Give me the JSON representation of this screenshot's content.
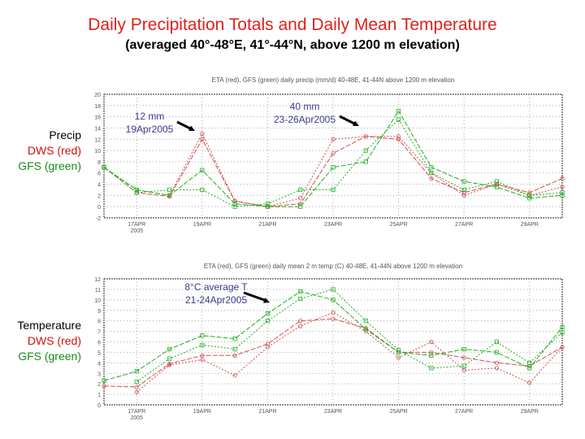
{
  "title": "Daily Precipitation Totals and Daily Mean Temperature",
  "subtitle": "(averaged 40°-48°E, 41°-44°N, above 1200 m elevation)",
  "panels": {
    "precip": {
      "label1": "Precip",
      "label2": "DWS (red)",
      "label3": "GFS (green)",
      "annot1": {
        "line1": "12 mm",
        "line2": "19Apr2005"
      },
      "annot2": {
        "line1": "40 mm",
        "line2": "23-26Apr2005"
      }
    },
    "temp": {
      "label1": "Temperature",
      "label2": "DWS (red)",
      "label3": "GFS (green)",
      "annot1": {
        "line1": "8°C average T",
        "line2": "21-24Apr2005"
      }
    }
  },
  "colors": {
    "red": "#d05050",
    "green": "#20b020",
    "title": "#e0201c",
    "annotation": "#3a3a8c"
  },
  "chart_data": [
    {
      "type": "line",
      "title": "ETA (red), GFS (green) daily precip (mm/d) 40-48E, 41-44N above 1200 m elevation",
      "x": [
        "16APR",
        "17APR",
        "18APR",
        "19APR",
        "20APR",
        "21APR",
        "22APR",
        "23APR",
        "24APR",
        "25APR",
        "26APR",
        "27APR",
        "28APR",
        "29APR",
        "30APR"
      ],
      "tick_labels": [
        "17APR\n2005",
        "19APR",
        "21APR",
        "23APR",
        "25APR",
        "27APR",
        "29APR"
      ],
      "ylim": [
        -2,
        20
      ],
      "yticks": [
        -2,
        0,
        2,
        4,
        6,
        8,
        10,
        12,
        14,
        16,
        18,
        20
      ],
      "grid": true,
      "series": [
        {
          "color": "red",
          "values": [
            7,
            2.5,
            1.8,
            12,
            1,
            0,
            0.5,
            9.5,
            12.5,
            12,
            5,
            2.5,
            4,
            2.5,
            5
          ]
        },
        {
          "color": "red",
          "values": [
            7,
            3,
            2,
            13,
            1,
            0,
            1.5,
            12,
            12.5,
            12.5,
            6,
            2,
            4,
            2,
            3.5
          ]
        },
        {
          "color": "green",
          "values": [
            7,
            3,
            2,
            6.5,
            0.5,
            0,
            0,
            7,
            8,
            17,
            7,
            4.5,
            3.5,
            1.5,
            2
          ]
        },
        {
          "color": "green",
          "values": [
            7,
            2.5,
            3,
            3,
            0,
            0.5,
            3,
            3,
            10,
            15.5,
            6,
            3,
            4.5,
            2,
            2.5
          ]
        }
      ]
    },
    {
      "type": "line",
      "title": "ETA (red), GFS (green) daily mean 2 m temp (C) 40-48E, 41-44N above 1200 m elevation",
      "x": [
        "16APR",
        "17APR",
        "18APR",
        "19APR",
        "20APR",
        "21APR",
        "22APR",
        "23APR",
        "24APR",
        "25APR",
        "26APR",
        "27APR",
        "28APR",
        "29APR",
        "30APR"
      ],
      "tick_labels": [
        "17APR\n2005",
        "19APR",
        "21APR",
        "23APR",
        "25APR",
        "27APR",
        "29APR"
      ],
      "ylim": [
        0,
        12
      ],
      "yticks": [
        0,
        1,
        2,
        3,
        4,
        5,
        6,
        7,
        8,
        9,
        10,
        11,
        12
      ],
      "grid": true,
      "series": [
        {
          "color": "red",
          "values": [
            1.8,
            1.7,
            3.9,
            4.7,
            4.7,
            5.8,
            8,
            8.2,
            7.3,
            5,
            5,
            4.5,
            4,
            3.7,
            5.5
          ]
        },
        {
          "color": "red",
          "values": [
            null,
            1.2,
            3.8,
            4.3,
            2.8,
            5.5,
            7.5,
            8.8,
            7,
            4.5,
            6,
            3.3,
            3.5,
            2.1,
            5.5
          ]
        },
        {
          "color": "green",
          "values": [
            2.3,
            3.2,
            5.3,
            6.6,
            6.3,
            8.7,
            10.8,
            10,
            7.2,
            5,
            4.7,
            5.3,
            5,
            3.5,
            7.4
          ]
        },
        {
          "color": "green",
          "values": [
            null,
            2.2,
            4.4,
            5.7,
            5.3,
            8,
            10.1,
            11,
            8,
            5.2,
            3.5,
            3.7,
            6,
            4,
            6.9
          ]
        }
      ]
    }
  ]
}
